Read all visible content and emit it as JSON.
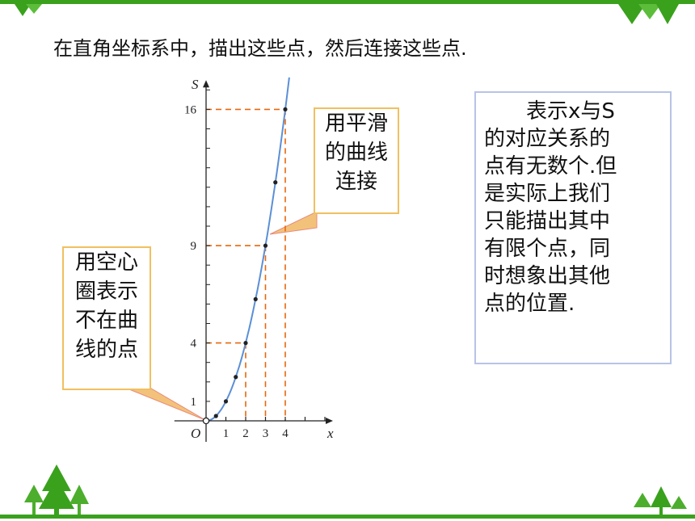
{
  "slide": {
    "heading": "在直角坐标系中，描出这些点，然后连接这些点.",
    "callout_smooth": [
      "用平滑",
      "的曲线",
      "连接"
    ],
    "callout_hollow": [
      "用空心",
      "圈表示",
      "不在曲",
      "线的点"
    ],
    "info_lines": [
      "表示x与S",
      "的对应关系的",
      "点有无数个.但",
      "是实际上我们",
      "只能描出其中",
      "有限个点，同",
      "时想象出其他",
      "点的位置."
    ],
    "colors": {
      "bar": "#3aa11d",
      "curve": "#5b8fd6",
      "guide": "#e8670c",
      "callout_border": "#f0c060",
      "info_border": "#b8c4e6"
    }
  },
  "chart_data": {
    "type": "line",
    "xlabel": "x",
    "ylabel": "S",
    "origin_label": "O",
    "x_ticks": [
      "1",
      "2",
      "3",
      "4"
    ],
    "y_ticks": [
      "1",
      "4",
      "9",
      "16"
    ],
    "xlim": [
      0,
      6
    ],
    "ylim": [
      0,
      17.5
    ],
    "curve": "S = x²",
    "points": [
      {
        "x": 0,
        "y": 0,
        "hollow": true
      },
      {
        "x": 0.5,
        "y": 0.25
      },
      {
        "x": 1,
        "y": 1
      },
      {
        "x": 1.5,
        "y": 2.25
      },
      {
        "x": 2,
        "y": 4
      },
      {
        "x": 2.5,
        "y": 6.25
      },
      {
        "x": 3,
        "y": 9
      },
      {
        "x": 3.5,
        "y": 12.25
      },
      {
        "x": 4,
        "y": 16
      }
    ],
    "guides": [
      {
        "x": 2,
        "y": 4
      },
      {
        "x": 3,
        "y": 9
      },
      {
        "x": 4,
        "y": 16
      }
    ]
  }
}
